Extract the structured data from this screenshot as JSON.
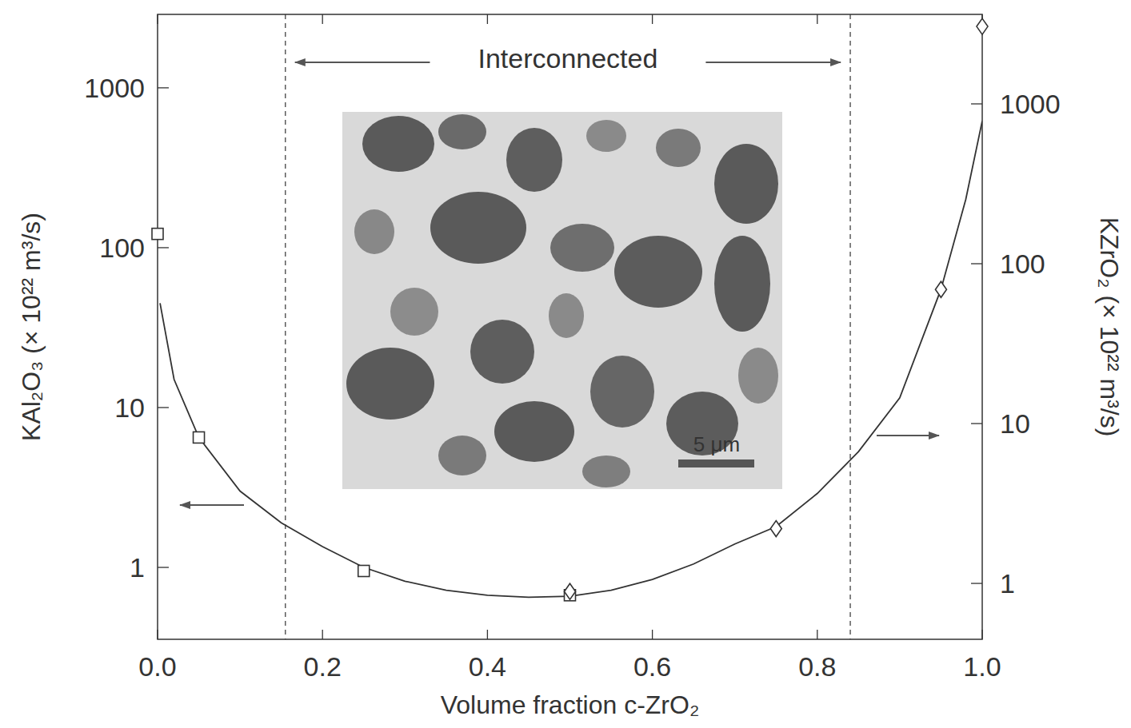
{
  "chart_data": {
    "type": "scatter",
    "x_label": "Volume fraction c-ZrO₂",
    "y_label": "KAl₂O₃ (× 10²² m³/s)",
    "y2_label": "KZrO₂ (× 10²² m³/s)",
    "log": "y",
    "grid": false,
    "xlim": [
      0,
      1
    ],
    "ylim": [
      0.355,
      2880
    ],
    "y2lim": [
      0.447,
      3630
    ],
    "xticks": [
      {
        "value": 0,
        "label": "0.0"
      },
      0.2,
      0.4,
      0.6,
      0.8,
      {
        "value": 1,
        "label": "1.0"
      }
    ],
    "yticks": [
      1,
      10,
      100,
      1000
    ],
    "y2ticks": [
      1,
      10,
      100,
      1000
    ],
    "annotation": "Interconnected",
    "interconnected_range": [
      0.155,
      0.84
    ],
    "inset_scale_bar": "5 μm",
    "series": [
      {
        "marker": "square",
        "color": "#333333",
        "axis": "y",
        "x": [
          0,
          0.05,
          0.25,
          0.5
        ],
        "values": [
          122,
          6.5,
          0.95,
          0.67
        ]
      },
      {
        "marker": "diamond",
        "color": "#333333",
        "axis": "y2",
        "x": [
          0.5,
          0.75,
          0.95,
          1.0
        ],
        "values": [
          0.89,
          2.2,
          69,
          3050
        ]
      },
      {
        "type": "line",
        "line_style": "solid",
        "color": "#333333",
        "axis": "y",
        "x": [
          0.003,
          0.02,
          0.05,
          0.1,
          0.15,
          0.2,
          0.25,
          0.3,
          0.35,
          0.4,
          0.45,
          0.5,
          0.55,
          0.6,
          0.65,
          0.7,
          0.75,
          0.8,
          0.85,
          0.9,
          0.95,
          0.98,
          1.0
        ],
        "values": [
          45,
          15,
          6.5,
          3.0,
          1.9,
          1.35,
          1.0,
          0.82,
          0.72,
          0.67,
          0.65,
          0.66,
          0.72,
          0.84,
          1.05,
          1.4,
          1.8,
          2.9,
          5.3,
          11.5,
          55,
          200,
          620
        ]
      }
    ]
  }
}
